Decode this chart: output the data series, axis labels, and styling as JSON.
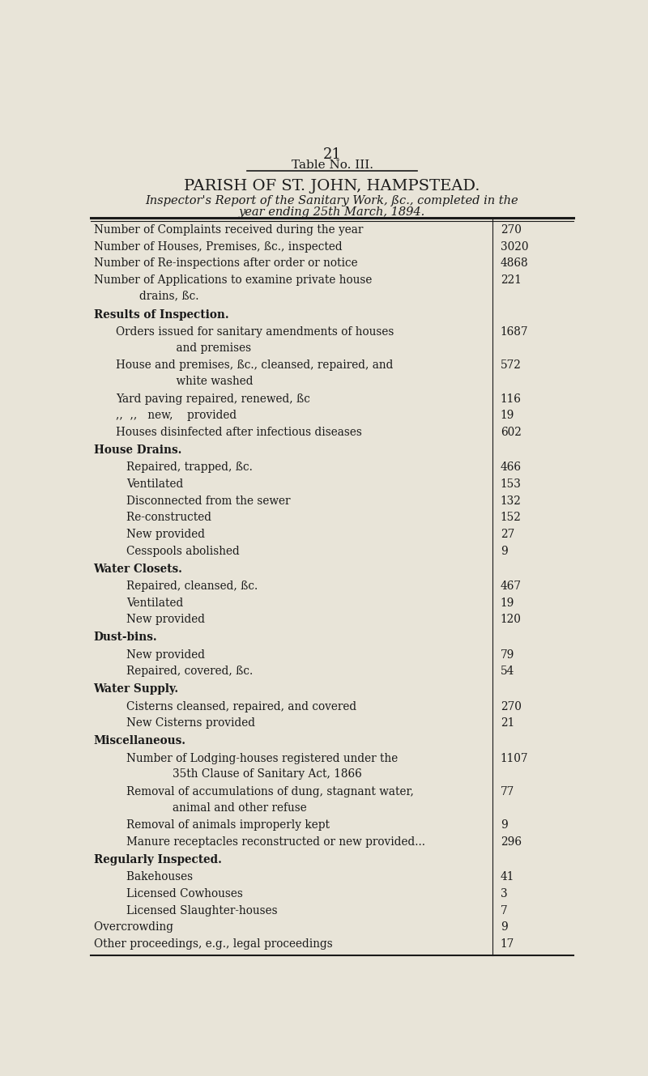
{
  "page_number": "21",
  "table_label": "Table No. III.",
  "title": "PARISH OF ST. JOHN, HAMPSTEAD.",
  "subtitle_line1": "Inspector's Report of the Sanitary Work, ßc., completed in the",
  "subtitle_line2": "year ending 25th March, 1894.",
  "bg_color": "#e8e4d8",
  "text_color": "#1a1a1a",
  "rows": [
    {
      "label": "Number of Complaints received during the year           ",
      "value": "270",
      "indent": 0,
      "bold": false,
      "style": "normal",
      "multiline": false
    },
    {
      "label": "Number of Houses, Premises, ßc., inspected             ",
      "value": "3020",
      "indent": 0,
      "bold": false,
      "style": "normal",
      "multiline": false
    },
    {
      "label": "Number of Re-inspections after order or notice          ",
      "value": "4868",
      "indent": 0,
      "bold": false,
      "style": "normal",
      "multiline": false
    },
    {
      "label1": "Number of Applications to examine private house",
      "label2": "        drains, ßc.",
      "value": "221",
      "indent": 0,
      "bold": false,
      "style": "normal",
      "multiline": true
    },
    {
      "label": "Results of Inspection.",
      "value": "",
      "indent": 0,
      "bold": true,
      "style": "section",
      "multiline": false
    },
    {
      "label1": "Orders issued for sanitary amendments of houses",
      "label2": "            and premises                                ",
      "value": "1687",
      "indent": 1,
      "bold": false,
      "style": "normal",
      "multiline": true
    },
    {
      "label1": "House and premises, ßc., cleansed, repaired, and",
      "label2": "            white washed                               ",
      "value": "572",
      "indent": 1,
      "bold": false,
      "style": "normal",
      "multiline": true
    },
    {
      "label": "Yard paving repaired, renewed, ßc                      ",
      "value": "116",
      "indent": 1,
      "bold": false,
      "style": "normal",
      "multiline": false
    },
    {
      "label": ",,  ,,   new,    provided                              ",
      "value": "19",
      "indent": 1,
      "bold": false,
      "style": "normal",
      "multiline": false
    },
    {
      "label": "Houses disinfected after infectious diseases          ",
      "value": "602",
      "indent": 1,
      "bold": false,
      "style": "normal",
      "multiline": false
    },
    {
      "label": "House Drains.",
      "value": "",
      "indent": 0,
      "bold": true,
      "style": "section",
      "multiline": false
    },
    {
      "label": "Repaired, trapped, ßc.                                      ",
      "value": "466",
      "indent": 2,
      "bold": false,
      "style": "normal",
      "multiline": false
    },
    {
      "label": "Ventilated                                                   ",
      "value": "153",
      "indent": 2,
      "bold": false,
      "style": "normal",
      "multiline": false
    },
    {
      "label": "Disconnected from the sewer                              ",
      "value": "132",
      "indent": 2,
      "bold": false,
      "style": "normal",
      "multiline": false
    },
    {
      "label": "Re-constructed                                              ",
      "value": "152",
      "indent": 2,
      "bold": false,
      "style": "normal",
      "multiline": false
    },
    {
      "label": "New provided                                                 ",
      "value": "27",
      "indent": 2,
      "bold": false,
      "style": "normal",
      "multiline": false
    },
    {
      "label": "Cesspools abolished                                          ",
      "value": "9",
      "indent": 2,
      "bold": false,
      "style": "normal",
      "multiline": false
    },
    {
      "label": "Water Closets.",
      "value": "",
      "indent": 0,
      "bold": true,
      "style": "section",
      "multiline": false
    },
    {
      "label": "Repaired, cleansed, ßc.                                     ",
      "value": "467",
      "indent": 2,
      "bold": false,
      "style": "normal",
      "multiline": false
    },
    {
      "label": "Ventilated                                                   ",
      "value": "19",
      "indent": 2,
      "bold": false,
      "style": "normal",
      "multiline": false
    },
    {
      "label": "New provided                                                 ",
      "value": "120",
      "indent": 2,
      "bold": false,
      "style": "normal",
      "multiline": false
    },
    {
      "label": "Dust-bins.",
      "value": "",
      "indent": 0,
      "bold": true,
      "style": "section",
      "multiline": false
    },
    {
      "label": "New provided                                                 ",
      "value": "79",
      "indent": 2,
      "bold": false,
      "style": "normal",
      "multiline": false
    },
    {
      "label": "Repaired, covered, ßc.                                        ",
      "value": "54",
      "indent": 2,
      "bold": false,
      "style": "normal",
      "multiline": false
    },
    {
      "label": "Water Supply.",
      "value": "",
      "indent": 0,
      "bold": true,
      "style": "section",
      "multiline": false
    },
    {
      "label": "Cisterns cleansed, repaired, and covered                  ",
      "value": "270",
      "indent": 2,
      "bold": false,
      "style": "normal",
      "multiline": false
    },
    {
      "label": "New Cisterns provided                                            ",
      "value": "21",
      "indent": 2,
      "bold": false,
      "style": "normal",
      "multiline": false
    },
    {
      "label": "Miscellaneous.",
      "value": "",
      "indent": 0,
      "bold": true,
      "style": "section",
      "multiline": false
    },
    {
      "label1": "Number of Lodging-houses registered under the",
      "label2": "        35th Clause of Sanitary Act, 1866               ",
      "value": "1107",
      "indent": 2,
      "bold": false,
      "style": "normal",
      "multiline": true
    },
    {
      "label1": "Removal of accumulations of dung, stagnant water,",
      "label2": "        animal and other refuse                            ",
      "value": "77",
      "indent": 2,
      "bold": false,
      "style": "normal",
      "multiline": true
    },
    {
      "label": "Removal of animals improperly kept                   ",
      "value": "9",
      "indent": 2,
      "bold": false,
      "style": "normal",
      "multiline": false
    },
    {
      "label": "Manure receptacles reconstructed or new provided...",
      "value": "296",
      "indent": 2,
      "bold": false,
      "style": "normal",
      "multiline": false
    },
    {
      "label": "Regularly Inspected.",
      "value": "",
      "indent": 0,
      "bold": true,
      "style": "section",
      "multiline": false
    },
    {
      "label": "Bakehouses                                                        ",
      "value": "41",
      "indent": 2,
      "bold": false,
      "style": "normal",
      "multiline": false
    },
    {
      "label": "Licensed Cowhouses                                              ",
      "value": "3",
      "indent": 2,
      "bold": false,
      "style": "normal",
      "multiline": false
    },
    {
      "label": "Licensed Slaughter-houses                                       ",
      "value": "7",
      "indent": 2,
      "bold": false,
      "style": "normal",
      "multiline": false
    },
    {
      "label": "Overcrowding                                                         ",
      "value": "9",
      "indent": 0,
      "bold": false,
      "style": "normal",
      "multiline": false
    },
    {
      "label": "Other proceedings, e.g., legal proceedings                 ",
      "value": "17",
      "indent": 0,
      "bold": false,
      "style": "normal",
      "multiline": false
    }
  ]
}
